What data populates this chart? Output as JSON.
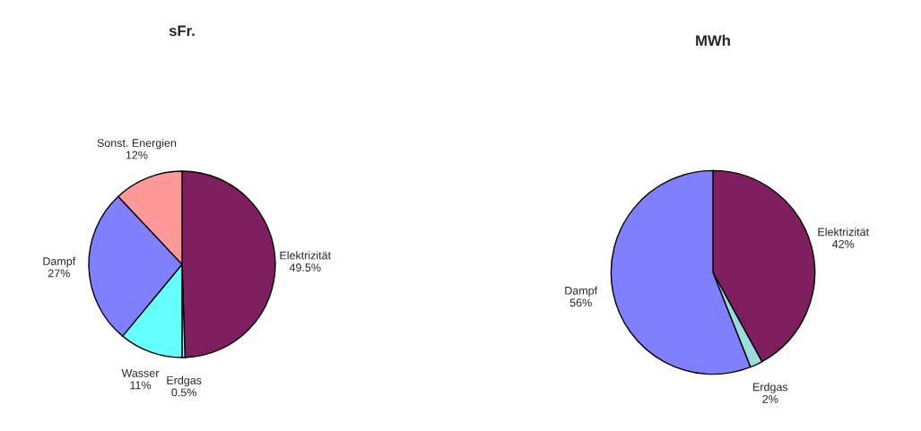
{
  "chart_data": [
    {
      "type": "pie",
      "title": "sFr.",
      "categories": [
        "Elektrizität",
        "Erdgas",
        "Wasser",
        "Dampf",
        "Sonst. Energien"
      ],
      "values": [
        49.5,
        0.5,
        11,
        27,
        12
      ],
      "value_labels": [
        "49.5%",
        "0.5%",
        "11%",
        "27%",
        "12%"
      ],
      "colors": [
        "#7f1f5f",
        "#99ffff",
        "#66ffff",
        "#8080ff",
        "#ff9999"
      ]
    },
    {
      "type": "pie",
      "title": "MWh",
      "categories": [
        "Elektrizität",
        "Erdgas",
        "Dampf"
      ],
      "values": [
        42,
        2,
        56
      ],
      "value_labels": [
        "42%",
        "2%",
        "56%"
      ],
      "colors": [
        "#7f1f5f",
        "#99dddd",
        "#8080ff"
      ]
    }
  ]
}
